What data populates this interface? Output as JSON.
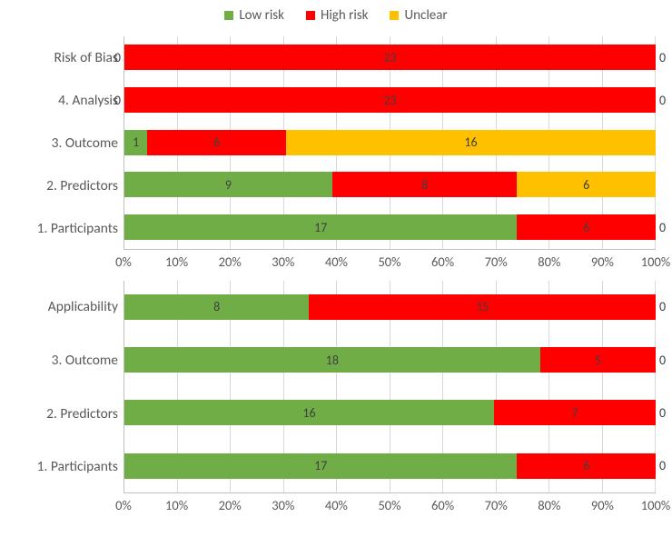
{
  "colors": {
    "low_risk": "#70ad47",
    "high_risk": "#ff0000",
    "unclear": "#ffc000",
    "grid": "#d9d9d9",
    "axis": "#bfbfbf",
    "text": "#595959",
    "bg": "#ffffff"
  },
  "legend": [
    {
      "key": "low_risk",
      "label": "Low risk"
    },
    {
      "key": "high_risk",
      "label": "High risk"
    },
    {
      "key": "unclear",
      "label": "Unclear"
    }
  ],
  "xaxis": {
    "min": 0,
    "max": 100,
    "step": 10,
    "suffix": "%"
  },
  "total": 23,
  "charts": [
    {
      "name": "risk-of-bias-chart",
      "rows": [
        {
          "label": "Risk of Bias",
          "low": 0,
          "high": 23,
          "unclear": 0
        },
        {
          "label": "4. Analysis",
          "low": 0,
          "high": 23,
          "unclear": 0
        },
        {
          "label": "3. Outcome",
          "low": 1,
          "high": 6,
          "unclear": 16
        },
        {
          "label": "2. Predictors",
          "low": 9,
          "high": 8,
          "unclear": 6
        },
        {
          "label": "1. Participants",
          "low": 17,
          "high": 6,
          "unclear": 0
        }
      ]
    },
    {
      "name": "applicability-chart",
      "rows": [
        {
          "label": "Applicability",
          "low": 8,
          "high": 15,
          "unclear": 0
        },
        {
          "label": "3. Outcome",
          "low": 18,
          "high": 5,
          "unclear": 0
        },
        {
          "label": "2. Predictors",
          "low": 16,
          "high": 7,
          "unclear": 0
        },
        {
          "label": "1. Participants",
          "low": 17,
          "high": 6,
          "unclear": 0
        }
      ]
    }
  ],
  "typography": {
    "legend_fontsize": 15,
    "axis_fontsize": 14.5,
    "ylabel_fontsize": 15.5,
    "datalabel_fontsize": 14
  }
}
